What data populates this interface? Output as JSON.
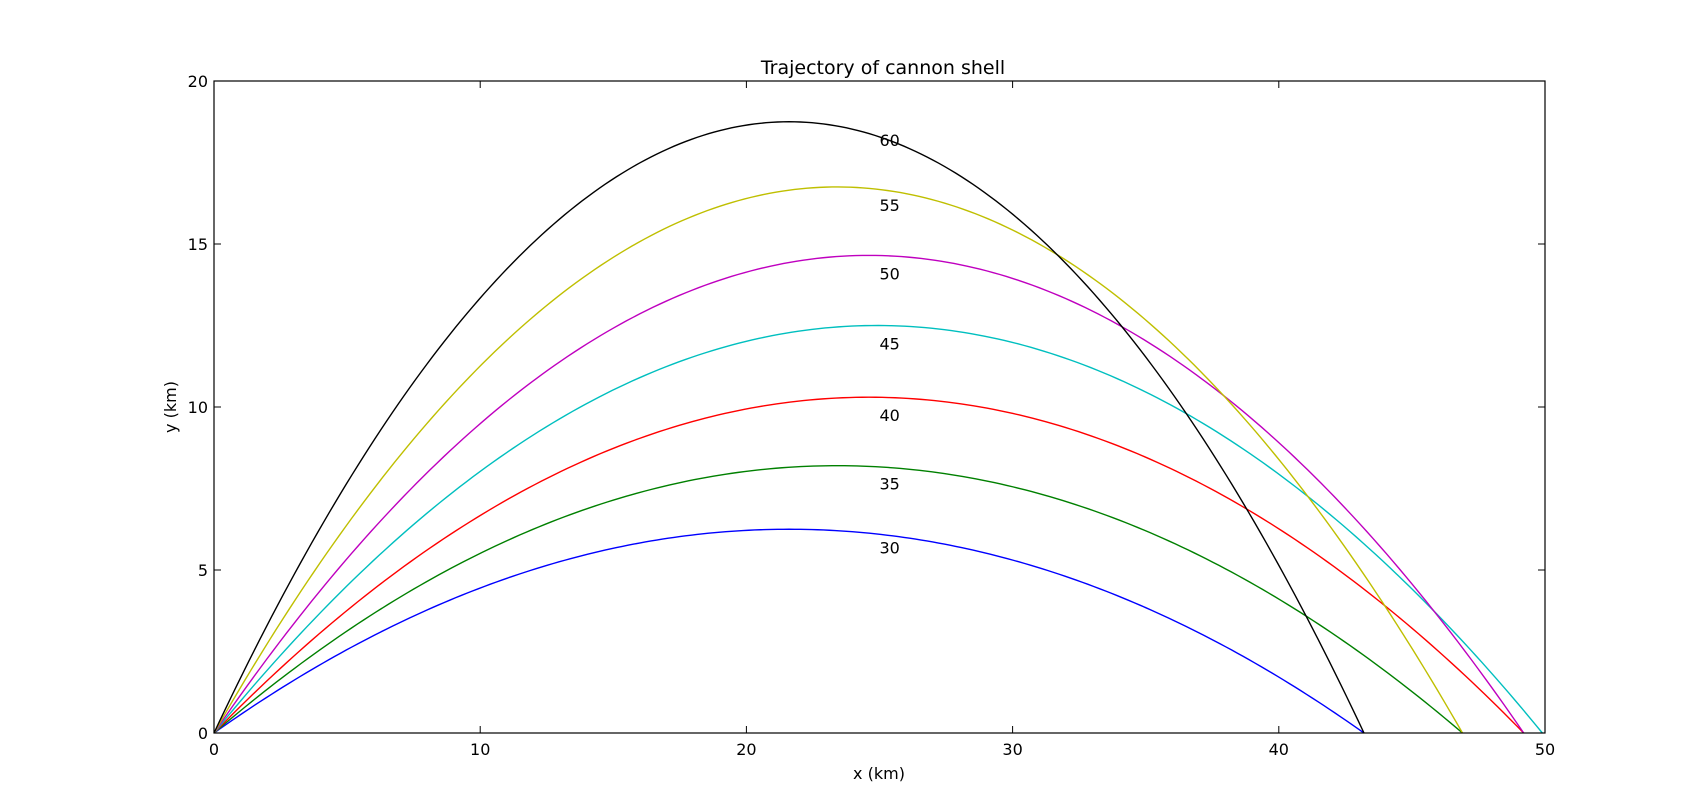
{
  "chart_data": {
    "type": "line",
    "title": "Trajectory of cannon shell",
    "xlabel": "x (km)",
    "ylabel": "y (km)",
    "xlim": [
      0,
      50
    ],
    "ylim": [
      0,
      20
    ],
    "xticks": [
      0,
      10,
      20,
      30,
      40,
      50
    ],
    "yticks": [
      0,
      5,
      10,
      15,
      20
    ],
    "grid": false,
    "annotation_x": 25,
    "series": [
      {
        "label": "30",
        "color": "#0000ff",
        "range": 43.2,
        "max_height": 6.25,
        "peak_x": 21.6
      },
      {
        "label": "35",
        "color": "#008000",
        "range": 46.9,
        "max_height": 8.2,
        "peak_x": 23.4
      },
      {
        "label": "40",
        "color": "#ff0000",
        "range": 49.2,
        "max_height": 10.3,
        "peak_x": 24.6
      },
      {
        "label": "45",
        "color": "#00bfbf",
        "range": 49.9,
        "max_height": 12.5,
        "peak_x": 24.9
      },
      {
        "label": "50",
        "color": "#bf00bf",
        "range": 49.2,
        "max_height": 14.65,
        "peak_x": 24.6
      },
      {
        "label": "55",
        "color": "#bfbf00",
        "range": 46.9,
        "max_height": 16.75,
        "peak_x": 23.4
      },
      {
        "label": "60",
        "color": "#000000",
        "range": 43.2,
        "max_height": 18.75,
        "peak_x": 21.6
      }
    ]
  }
}
